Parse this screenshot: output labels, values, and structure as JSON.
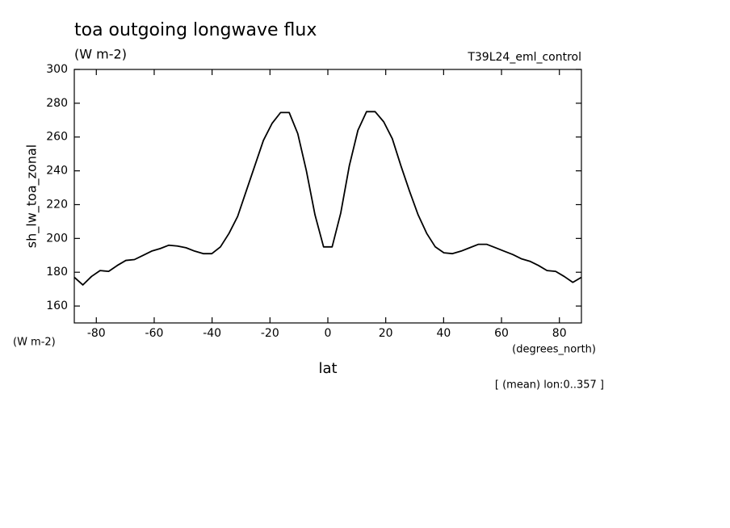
{
  "chart_data": {
    "type": "line",
    "title": "toa outgoing longwave flux",
    "units": "(W m-2)",
    "subtitle": "T39L24_eml_control",
    "y_label": "sh_lw_toa_zonal",
    "y_units": "(W m-2)",
    "x_label": "lat",
    "x_units": "(degrees_north)",
    "annotation": "[ (mean) lon:0..357 ]",
    "x": [
      -87.61,
      -84.64,
      -81.67,
      -78.7,
      -75.73,
      -72.76,
      -69.79,
      -66.82,
      -63.85,
      -60.88,
      -57.91,
      -54.94,
      -51.97,
      -49.0,
      -46.03,
      -43.06,
      -40.09,
      -37.12,
      -34.15,
      -31.18,
      -28.21,
      -25.24,
      -22.27,
      -19.3,
      -16.33,
      -13.36,
      -10.39,
      -7.42,
      -4.45,
      -1.48,
      1.48,
      4.45,
      7.42,
      10.39,
      13.36,
      16.33,
      19.3,
      22.27,
      25.24,
      28.21,
      31.18,
      34.15,
      37.12,
      40.09,
      43.06,
      46.03,
      49.0,
      51.97,
      54.94,
      57.91,
      60.88,
      63.85,
      66.82,
      69.79,
      72.76,
      75.73,
      78.7,
      81.67,
      84.64,
      87.61
    ],
    "series": [
      {
        "name": "sh_lw_toa_zonal",
        "color": "#000000",
        "values": [
          177,
          172.5,
          177.5,
          181,
          180.5,
          184,
          187,
          187.5,
          190,
          192.5,
          194,
          196,
          195.5,
          194.5,
          192.5,
          191,
          191,
          195,
          203,
          213,
          228,
          243,
          258,
          268,
          274.5,
          274.5,
          262,
          240,
          214,
          195,
          195,
          215,
          243,
          264,
          275,
          275,
          269,
          259,
          243,
          228,
          214,
          203,
          195,
          191.5,
          191,
          192.5,
          194.5,
          196.5,
          196.5,
          194.5,
          192.5,
          190.5,
          188,
          186.5,
          184,
          181,
          180.5,
          177.5,
          174,
          177
        ]
      }
    ],
    "xlim": [
      -87.61,
      87.61
    ],
    "ylim": [
      150,
      300
    ],
    "xticks": [
      -80,
      -60,
      -40,
      -20,
      0,
      20,
      40,
      60,
      80
    ],
    "yticks": [
      160,
      180,
      200,
      220,
      240,
      260,
      280,
      300
    ]
  }
}
